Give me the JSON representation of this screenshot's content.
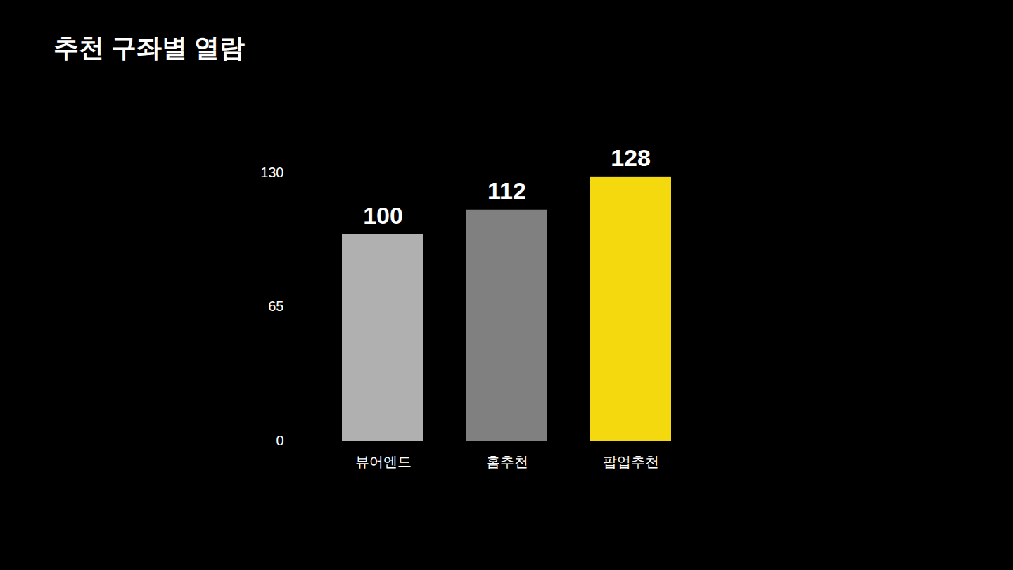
{
  "chart_data": {
    "type": "bar",
    "title": "추천 구좌별 열람",
    "categories": [
      "뷰어엔드",
      "홈추천",
      "팝업추천"
    ],
    "values": [
      100,
      112,
      128
    ],
    "colors": [
      "#b0b0b0",
      "#808080",
      "#f5d90f"
    ],
    "ylim": [
      0,
      130
    ],
    "yticks": [
      0,
      65,
      130
    ],
    "grid": false,
    "data_labels": true
  }
}
